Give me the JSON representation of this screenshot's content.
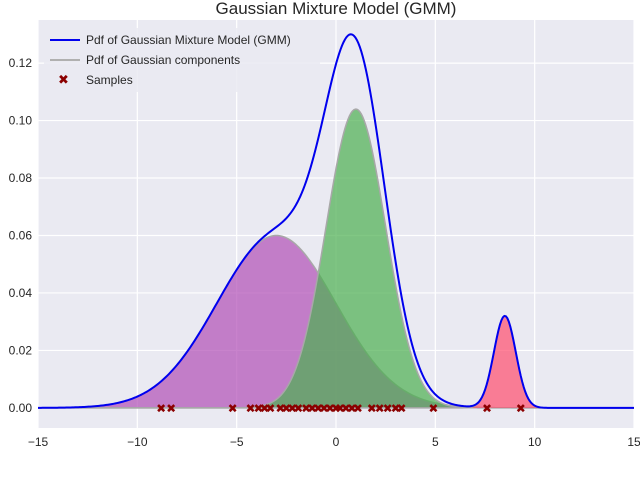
{
  "chart_data": {
    "type": "area",
    "title": "Gaussian Mixture Model (GMM)",
    "xlabel": "",
    "ylabel": "",
    "xlim": [
      -15,
      15
    ],
    "ylim": [
      -0.007,
      0.135
    ],
    "x_ticks": [
      -15,
      -10,
      -5,
      0,
      5,
      10,
      15
    ],
    "x_tick_labels": [
      "−15",
      "−10",
      "−5",
      "0",
      "5",
      "10",
      "15"
    ],
    "y_ticks": [
      0.0,
      0.02,
      0.04,
      0.06,
      0.08,
      0.1,
      0.12
    ],
    "y_tick_labels": [
      "0.00",
      "0.02",
      "0.04",
      "0.06",
      "0.08",
      "0.10",
      "0.12"
    ],
    "grid": true,
    "legend_position": "top-left",
    "legend": [
      {
        "label": "Pdf of Gaussian Mixture Model (GMM)",
        "kind": "line",
        "color": "#0000ee"
      },
      {
        "label": "Pdf of Gaussian components",
        "kind": "line",
        "color": "#b0b0b0"
      },
      {
        "label": "Samples",
        "kind": "marker",
        "color": "#8b0000"
      }
    ],
    "components": [
      {
        "mean": -3.0,
        "std": 3.0,
        "peak": 0.06,
        "color": "#b04fb6"
      },
      {
        "mean": 1.0,
        "std": 1.5,
        "peak": 0.104,
        "color": "#4caf50"
      },
      {
        "mean": 8.5,
        "std": 0.55,
        "peak": 0.032,
        "color": "#ff4d6d"
      }
    ],
    "series": [
      {
        "name": "Pdf of Gaussian Mixture Model (GMM)",
        "color": "#0000ee",
        "description_values": "sum of components"
      }
    ],
    "samples": [
      -8.8,
      -8.3,
      -5.2,
      -4.3,
      -3.9,
      -3.6,
      -3.3,
      -2.8,
      -2.5,
      -2.2,
      -1.9,
      -1.5,
      -1.2,
      -0.9,
      -0.6,
      -0.3,
      0.0,
      0.2,
      0.5,
      0.8,
      1.1,
      1.8,
      2.2,
      2.6,
      3.0,
      3.3,
      4.9,
      7.6,
      9.3
    ],
    "sample_color": "#8b0000"
  }
}
